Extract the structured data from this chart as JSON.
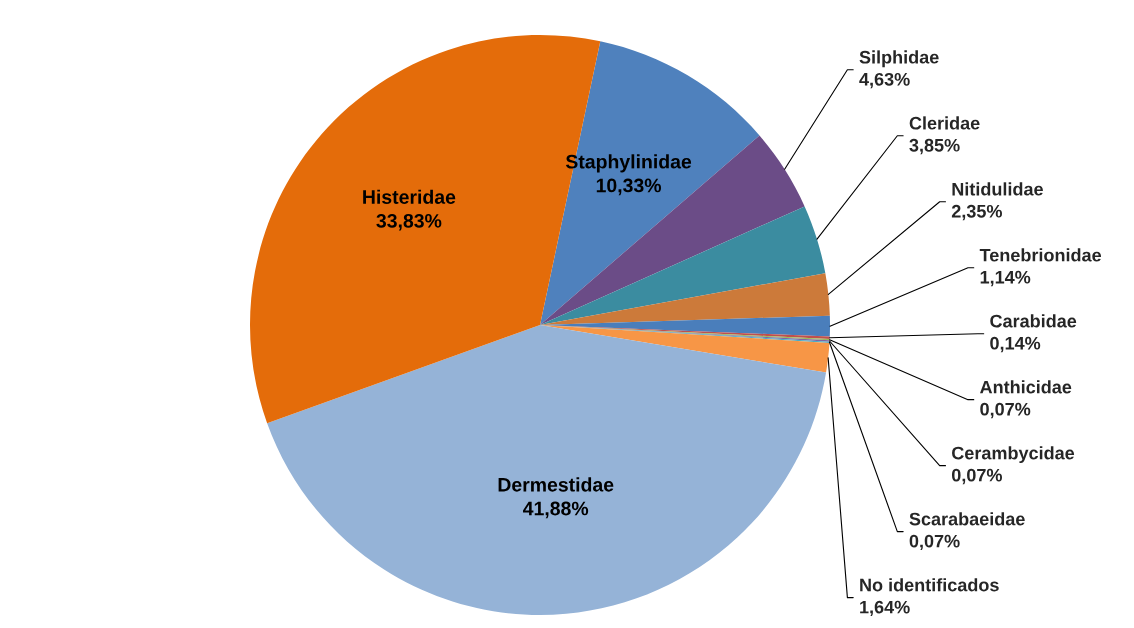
{
  "chart_data": {
    "type": "pie",
    "categories": [
      "Staphylinidae",
      "Silphidae",
      "Cleridae",
      "Nitidulidae",
      "Tenebrionidae",
      "Carabidae",
      "Anthicidae",
      "Cerambycidae",
      "Scarabaeidae",
      "No identificados",
      "Dermestidae",
      "Histeridae"
    ],
    "values": [
      10.33,
      4.63,
      3.85,
      2.35,
      1.14,
      0.14,
      0.07,
      0.07,
      0.07,
      1.64,
      41.88,
      33.83
    ],
    "value_labels": [
      "10,33%",
      "4,63%",
      "3,85%",
      "2,35%",
      "1,14%",
      "0,14%",
      "0,07%",
      "0,07%",
      "0,07%",
      "1,64%",
      "41,88%",
      "33,83%"
    ],
    "colors": [
      "#4f81bd",
      "#6b4c87",
      "#3b8ca0",
      "#cc7a3a",
      "#4a7ebb",
      "#c0504d",
      "#9bbb59",
      "#8064a2",
      "#4bacc6",
      "#f79646",
      "#95b3d7",
      "#e46c0a"
    ]
  }
}
